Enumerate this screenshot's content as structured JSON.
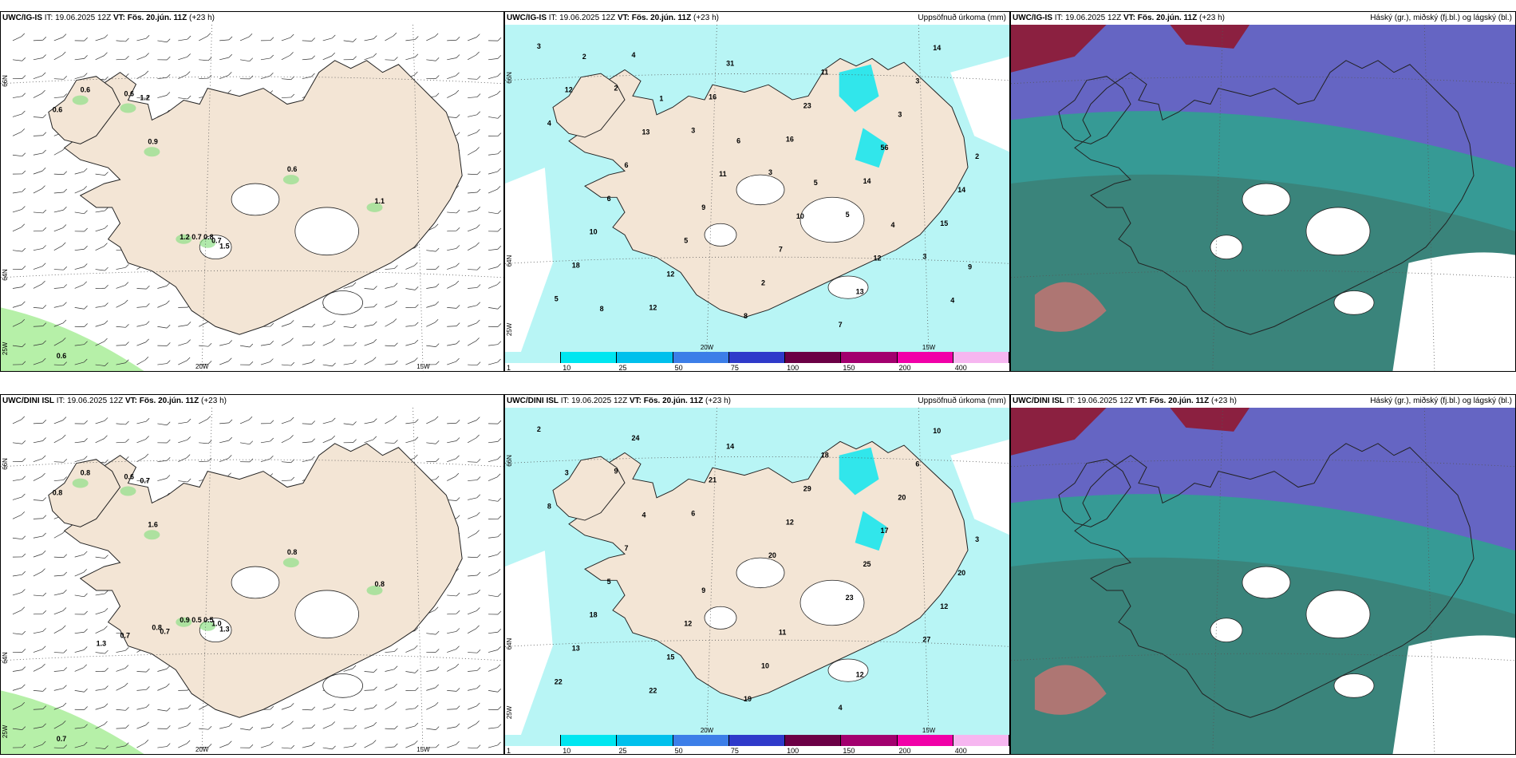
{
  "panels": [
    {
      "model": "UWC/IG-IS",
      "init": "IT: 19.06.2025 12Z",
      "valid": "VT: Fös. 20.jún. 11Z",
      "lead": "(+23 h)",
      "right": "",
      "type": "wind"
    },
    {
      "model": "UWC/IG-IS",
      "init": "IT: 19.06.2025 12Z",
      "valid": "VT: Fös. 20.jún. 11Z",
      "lead": "(+23 h)",
      "right": "Uppsöfnuð úrkoma (mm)",
      "type": "precip"
    },
    {
      "model": "UWC/IG-IS",
      "init": "IT: 19.06.2025 12Z",
      "valid": "VT: Fös. 20.jún. 11Z",
      "lead": "(+23 h)",
      "right": "Háský (gr.), miðský (fj.bl.) og lágský (bl.)",
      "type": "cloud"
    },
    {
      "model": "UWC/DINI ISL",
      "init": "IT: 19.06.2025 12Z",
      "valid": "VT: Fös. 20.jún. 11Z",
      "lead": "(+23 h)",
      "right": "",
      "type": "wind"
    },
    {
      "model": "UWC/DINI ISL",
      "init": "IT: 19.06.2025 12Z",
      "valid": "VT: Fös. 20.jún. 11Z",
      "lead": "(+23 h)",
      "right": "Uppsöfnuð úrkoma (mm)",
      "type": "precip"
    },
    {
      "model": "UWC/DINI ISL",
      "init": "IT: 19.06.2025 12Z",
      "valid": "VT: Fös. 20.jún. 11Z",
      "lead": "(+23 h)",
      "right": "Háský (gr.), miðský (fj.bl.) og lágský (bl.)",
      "type": "cloud"
    }
  ],
  "axes": {
    "lat_top": "66N",
    "lat_bottom": "64N",
    "lon_left": "25W",
    "lon_mid": "20W",
    "lon_right": "15W"
  },
  "colorbar": {
    "ticks": [
      "1",
      "10",
      "25",
      "50",
      "75",
      "100",
      "150",
      "200",
      "400"
    ],
    "colors": [
      "#b8f5f5",
      "#00e6f0",
      "#00c0ec",
      "#3c7ee8",
      "#2f3aca",
      "#6b0045",
      "#a2006e",
      "#f100a8",
      "#f6b6f0"
    ]
  },
  "wind_labels": [
    [
      [
        "0.6"
      ],
      [
        "0.6"
      ],
      [
        "0.6"
      ],
      [
        "1.2"
      ],
      [
        "0.9"
      ],
      [
        "0.6"
      ],
      [
        "1.1"
      ],
      [
        "1.2"
      ],
      [
        "0.7"
      ],
      [
        "0.8"
      ],
      [
        "0.7"
      ],
      [
        "1.5"
      ],
      [
        "0.6"
      ]
    ],
    [
      [
        "0.8"
      ],
      [
        "0.8"
      ],
      [
        "0.6"
      ],
      [
        "0.7"
      ],
      [
        "1.6"
      ],
      [
        "0.8"
      ],
      [
        "0.8"
      ],
      [
        "0.9"
      ],
      [
        "0.5"
      ],
      [
        "0.5"
      ],
      [
        "1.0"
      ],
      [
        "1.3"
      ],
      [
        "0.7"
      ],
      [
        "0.8"
      ],
      [
        "0.7"
      ],
      [
        "0.7"
      ],
      [
        "1.3"
      ]
    ]
  ],
  "precip_labels": [
    [
      "3",
      "2",
      "3",
      "3",
      "5",
      "3",
      "5",
      "4",
      "16",
      "16",
      "14",
      "15",
      "18",
      "12",
      "31",
      "23",
      "56",
      "14",
      "10",
      "12",
      "8",
      "11",
      "3",
      "2",
      "6",
      "5",
      "2",
      "7",
      "3",
      "4",
      "6",
      "9",
      "7",
      "13",
      "14",
      "12",
      "13",
      "11",
      "10",
      "12",
      "4",
      "2",
      "1",
      "6",
      "5",
      "4",
      "9",
      "8"
    ],
    [
      "2",
      "9",
      "6",
      "20",
      "23",
      "27",
      "22",
      "24",
      "21",
      "12",
      "25",
      "12",
      "13",
      "22",
      "14",
      "29",
      "17",
      "20",
      "18",
      "15",
      "19",
      "18",
      "20",
      "3",
      "5",
      "12",
      "10",
      "4",
      "6",
      "8",
      "7",
      "9",
      "11",
      "12",
      "10",
      "3",
      "4"
    ]
  ]
}
